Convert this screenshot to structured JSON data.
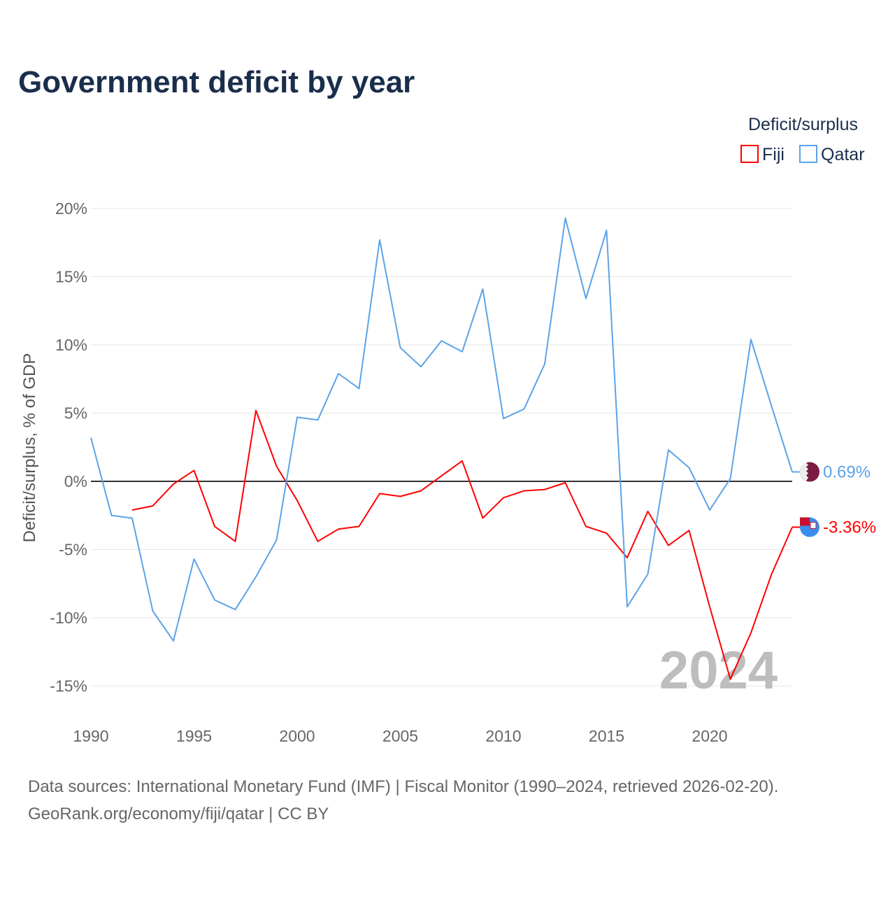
{
  "chart_data": {
    "type": "line",
    "title": "Government deficit by year",
    "ylabel": "Deficit/surplus, % of GDP",
    "xlabel": "",
    "ylim": [
      -17.5,
      20
    ],
    "xlim": [
      1990,
      2024
    ],
    "grid": true,
    "y_ticks": [
      20,
      15,
      10,
      5,
      0,
      -5,
      -10,
      -15
    ],
    "y_tick_labels": [
      "20%",
      "15%",
      "10%",
      "5%",
      "0%",
      "-5%",
      "-10%",
      "-15%"
    ],
    "x_ticks": [
      1990,
      1995,
      2000,
      2005,
      2010,
      2015,
      2020
    ],
    "x_tick_labels": [
      "1990",
      "1995",
      "2000",
      "2005",
      "2010",
      "2015",
      "2020"
    ],
    "legend": {
      "title": "Deficit/surplus",
      "placement": "top-right",
      "entries": [
        "Fiji",
        "Qatar"
      ]
    },
    "year_watermark": "2024",
    "series": [
      {
        "name": "Fiji",
        "color": "#ff0000",
        "end_label": "-3.36%",
        "x": [
          1992,
          1993,
          1994,
          1995,
          1996,
          1997,
          1998,
          1999,
          2000,
          2001,
          2002,
          2003,
          2004,
          2005,
          2006,
          2007,
          2008,
          2009,
          2010,
          2011,
          2012,
          2013,
          2014,
          2015,
          2016,
          2017,
          2018,
          2019,
          2020,
          2021,
          2022,
          2023,
          2024
        ],
        "values": [
          -2.1,
          -1.8,
          -0.2,
          0.8,
          -3.3,
          -4.4,
          5.2,
          1.1,
          -1.4,
          -4.4,
          -3.5,
          -3.3,
          -0.9,
          -1.1,
          -0.7,
          0.4,
          1.5,
          -2.7,
          -1.2,
          -0.7,
          -0.6,
          -0.1,
          -3.3,
          -3.8,
          -5.6,
          -2.2,
          -4.7,
          -3.6,
          -9.2,
          -14.5,
          -11.1,
          -6.8,
          -3.36
        ]
      },
      {
        "name": "Qatar",
        "color": "#5ba3e8",
        "end_label": "0.69%",
        "x": [
          1990,
          1991,
          1992,
          1993,
          1994,
          1995,
          1996,
          1997,
          1998,
          1999,
          2000,
          2001,
          2002,
          2003,
          2004,
          2005,
          2006,
          2007,
          2008,
          2009,
          2010,
          2011,
          2012,
          2013,
          2014,
          2015,
          2016,
          2017,
          2018,
          2019,
          2020,
          2021,
          2022,
          2023,
          2024
        ],
        "values": [
          3.2,
          -2.5,
          -2.7,
          -9.5,
          -11.7,
          -5.7,
          -8.7,
          -9.4,
          -7.0,
          -4.3,
          4.7,
          4.5,
          7.9,
          6.8,
          17.7,
          9.8,
          8.4,
          10.3,
          9.5,
          14.1,
          4.6,
          5.3,
          8.6,
          19.3,
          13.4,
          18.4,
          -9.2,
          -6.8,
          2.3,
          1.0,
          -2.1,
          0.2,
          10.4,
          5.5,
          0.69
        ]
      }
    ]
  },
  "footer": {
    "source": "Data sources: International Monetary Fund (IMF) | Fiscal Monitor (1990–2024, retrieved 2026-02-20).",
    "credit": "GeoRank.org/economy/fiji/qatar | CC BY"
  }
}
